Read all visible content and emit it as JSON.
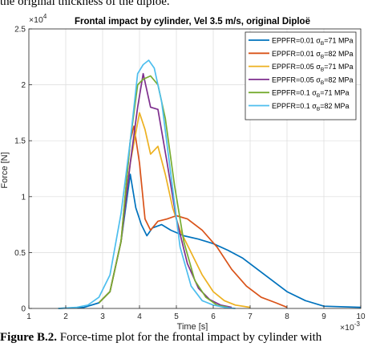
{
  "page": {
    "top_text": "the original thickness of the diploe.",
    "caption_label": "Figure B.2.",
    "caption_text": "Force-time plot for the frontal impact by cylinder with"
  },
  "chart_data": {
    "type": "line",
    "title": "Frontal impact by cylinder, Vel 3.5 m/s, original Diploë",
    "xlabel": "Time [s]",
    "ylabel": "Force [N]",
    "x_multiplier": "×10",
    "x_multiplier_exp": "-3",
    "y_multiplier": "×10",
    "y_multiplier_exp": "4",
    "xlim": [
      1,
      10
    ],
    "ylim": [
      0,
      2.5
    ],
    "x_ticks": [
      1,
      2,
      3,
      4,
      5,
      6,
      7,
      8,
      9,
      10
    ],
    "y_ticks": [
      0,
      0.5,
      1,
      1.5,
      2,
      2.5
    ],
    "grid": true,
    "legend_position": "top-right",
    "series": [
      {
        "legend_prefix": "EPPFR=0.01 ",
        "legend_suffix": "=71 MPa",
        "color": "#0072BD",
        "x": [
          1.8,
          2.5,
          2.9,
          3.2,
          3.5,
          3.75,
          3.9,
          4.05,
          4.2,
          4.35,
          4.6,
          4.85,
          5.2,
          5.6,
          6.0,
          6.4,
          6.8,
          7.2,
          7.6,
          8.0,
          8.5,
          9.0,
          10.0
        ],
        "y": [
          0.0,
          0.01,
          0.05,
          0.15,
          0.6,
          1.2,
          0.9,
          0.75,
          0.65,
          0.72,
          0.75,
          0.7,
          0.65,
          0.62,
          0.58,
          0.52,
          0.45,
          0.35,
          0.25,
          0.15,
          0.07,
          0.02,
          0.01
        ]
      },
      {
        "legend_prefix": "EPPFR=0.01 ",
        "legend_suffix": "=82 MPa",
        "color": "#D95319",
        "x": [
          2.9,
          3.2,
          3.5,
          3.75,
          3.85,
          4.0,
          4.15,
          4.3,
          4.5,
          4.75,
          5.0,
          5.3,
          5.7,
          6.1,
          6.5,
          6.9,
          7.3,
          7.7,
          8.0
        ],
        "y": [
          0.05,
          0.15,
          0.6,
          1.5,
          1.63,
          1.3,
          0.8,
          0.7,
          0.78,
          0.8,
          0.83,
          0.8,
          0.7,
          0.55,
          0.35,
          0.2,
          0.1,
          0.05,
          0.01
        ]
      },
      {
        "legend_prefix": "EPPFR=0.05 ",
        "legend_suffix": "=71 MPa",
        "color": "#EDB120",
        "x": [
          2.9,
          3.2,
          3.5,
          3.75,
          4.0,
          4.15,
          4.3,
          4.5,
          4.7,
          4.9,
          5.1,
          5.4,
          5.7,
          6.0,
          6.3,
          6.6,
          7.0
        ],
        "y": [
          0.05,
          0.15,
          0.6,
          1.3,
          1.75,
          1.6,
          1.38,
          1.45,
          1.2,
          0.9,
          0.7,
          0.5,
          0.3,
          0.15,
          0.07,
          0.03,
          0.01
        ]
      },
      {
        "legend_prefix": "EPPFR=0.05 ",
        "legend_suffix": "=82 MPa",
        "color": "#7E2F8E",
        "x": [
          2.9,
          3.2,
          3.5,
          3.75,
          3.95,
          4.1,
          4.3,
          4.5,
          4.75,
          5.0,
          5.3,
          5.6,
          5.9,
          6.2,
          6.5
        ],
        "y": [
          0.05,
          0.15,
          0.6,
          1.3,
          1.8,
          2.1,
          1.8,
          1.78,
          1.3,
          0.8,
          0.4,
          0.18,
          0.08,
          0.03,
          0.01
        ]
      },
      {
        "legend_prefix": "EPPFR=0.1 ",
        "legend_suffix": "=71 MPa",
        "color": "#77AC30",
        "x": [
          2.9,
          3.2,
          3.5,
          3.75,
          3.95,
          4.1,
          4.3,
          4.5,
          4.7,
          4.95,
          5.2,
          5.5,
          5.8,
          6.1,
          6.4
        ],
        "y": [
          0.05,
          0.15,
          0.6,
          1.5,
          2.0,
          2.05,
          2.08,
          2.0,
          1.7,
          1.1,
          0.6,
          0.25,
          0.1,
          0.03,
          0.01
        ]
      },
      {
        "legend_prefix": "EPPFR=0.1 ",
        "legend_suffix": "=82 MPa",
        "color": "#4DBEEE",
        "x": [
          1.8,
          2.3,
          2.6,
          2.9,
          3.2,
          3.5,
          3.75,
          3.95,
          4.1,
          4.25,
          4.4,
          4.6,
          4.85,
          5.1,
          5.4,
          5.7,
          6.0,
          6.3,
          6.6
        ],
        "y": [
          0.0,
          0.01,
          0.03,
          0.1,
          0.3,
          0.85,
          1.5,
          2.1,
          2.18,
          2.22,
          2.15,
          1.85,
          1.2,
          0.55,
          0.2,
          0.07,
          0.03,
          0.01,
          0.0
        ]
      }
    ]
  }
}
